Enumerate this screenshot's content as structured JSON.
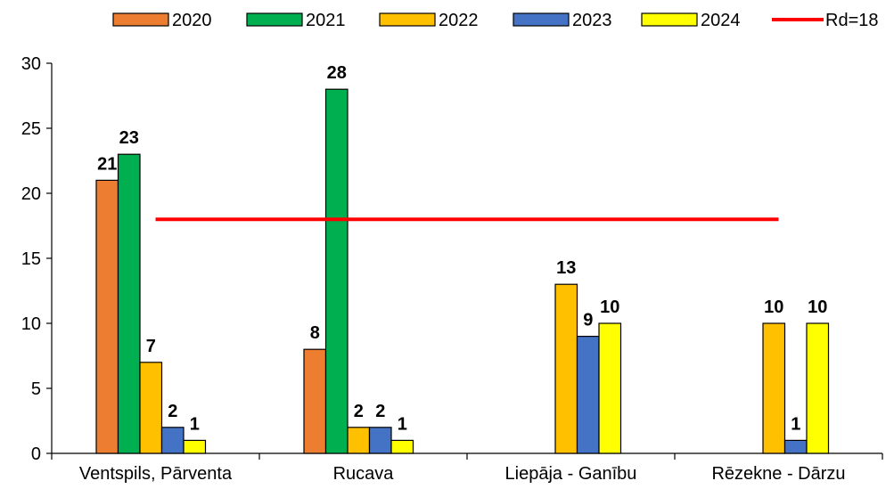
{
  "chart_data": {
    "type": "bar",
    "title": "",
    "xlabel": "",
    "ylabel": "",
    "ylim": [
      0,
      30
    ],
    "yticks": [
      0,
      5,
      10,
      15,
      20,
      25,
      30
    ],
    "grid": false,
    "legend_position": "top",
    "categories": [
      "Ventspils, Pārventa",
      "Rucava",
      "Liepāja - Ganību",
      "Rēzekne - Dārzu"
    ],
    "series": [
      {
        "name": "2020",
        "color": "#ED7D31",
        "values": [
          21,
          8,
          null,
          null
        ]
      },
      {
        "name": "2021",
        "color": "#00B050",
        "values": [
          23,
          28,
          null,
          null
        ]
      },
      {
        "name": "2022",
        "color": "#FFC000",
        "values": [
          7,
          2,
          13,
          10
        ]
      },
      {
        "name": "2023",
        "color": "#4472C4",
        "values": [
          2,
          2,
          9,
          1
        ]
      },
      {
        "name": "2024",
        "color": "#FFFF00",
        "values": [
          1,
          1,
          10,
          10
        ]
      }
    ],
    "reference_line": {
      "name": "Rd=18",
      "value": 18,
      "color": "#FF0000"
    }
  }
}
